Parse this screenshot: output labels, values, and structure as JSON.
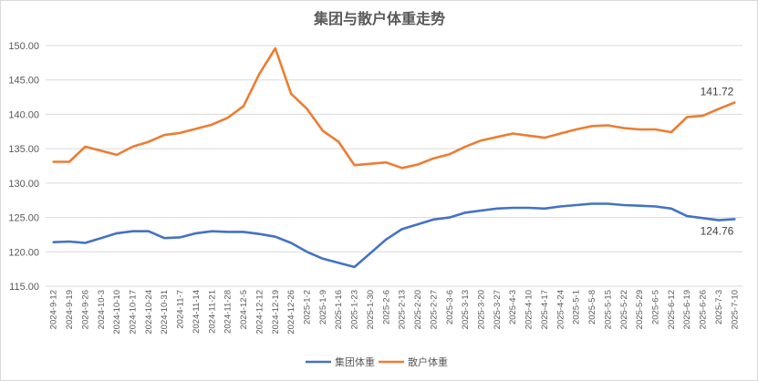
{
  "chart_data": {
    "type": "line",
    "title": "集团与散户体重走势",
    "xlabel": "",
    "ylabel": "",
    "ylim": [
      115,
      150
    ],
    "yticks": [
      "115.00",
      "120.00",
      "125.00",
      "130.00",
      "135.00",
      "140.00",
      "145.00",
      "150.00"
    ],
    "grid": true,
    "legend_position": "bottom",
    "x": [
      "2024-9-12",
      "2024-9-19",
      "2024-9-26",
      "2024-10-3",
      "2024-10-10",
      "2024-10-17",
      "2024-10-24",
      "2024-10-31",
      "2024-11-7",
      "2024-11-14",
      "2024-11-21",
      "2024-11-28",
      "2024-12-5",
      "2024-12-12",
      "2024-12-19",
      "2024-12-26",
      "2025-1-2",
      "2025-1-9",
      "2025-1-16",
      "2025-1-23",
      "2025-1-30",
      "2025-2-6",
      "2025-2-13",
      "2025-2-20",
      "2025-2-27",
      "2025-3-6",
      "2025-3-13",
      "2025-3-20",
      "2025-3-27",
      "2025-4-3",
      "2025-4-10",
      "2025-4-17",
      "2025-4-24",
      "2025-5-1",
      "2025-5-8",
      "2025-5-15",
      "2025-5-22",
      "2025-5-29",
      "2025-6-5",
      "2025-6-12",
      "2025-6-19",
      "2025-6-26",
      "2025-7-3",
      "2025-7-10"
    ],
    "series": [
      {
        "name": "集团体重",
        "color": "#4472c4",
        "values": [
          121.4,
          121.5,
          121.3,
          122.0,
          122.7,
          123.0,
          123.0,
          122.0,
          122.1,
          122.7,
          123.0,
          122.9,
          122.9,
          122.6,
          122.2,
          121.3,
          120.0,
          119.0,
          118.4,
          117.8,
          119.8,
          121.8,
          123.3,
          124.0,
          124.7,
          125.0,
          125.7,
          126.0,
          126.3,
          126.4,
          126.4,
          126.3,
          126.6,
          126.8,
          127.0,
          127.0,
          126.8,
          126.7,
          126.6,
          126.3,
          125.2,
          124.9,
          124.6,
          124.76
        ],
        "end_label": "124.76"
      },
      {
        "name": "散户体重",
        "color": "#ed7d31",
        "values": [
          133.1,
          133.1,
          135.3,
          134.7,
          134.1,
          135.3,
          136.0,
          137.0,
          137.3,
          137.9,
          138.5,
          139.5,
          141.2,
          145.9,
          149.6,
          143.0,
          140.8,
          137.6,
          136.0,
          132.6,
          132.8,
          133.0,
          132.2,
          132.7,
          133.6,
          134.2,
          135.3,
          136.2,
          136.7,
          137.2,
          136.9,
          136.6,
          137.2,
          137.8,
          138.3,
          138.4,
          138.0,
          137.8,
          137.8,
          137.4,
          139.6,
          139.8,
          140.8,
          141.72
        ],
        "end_label": "141.72"
      }
    ]
  }
}
